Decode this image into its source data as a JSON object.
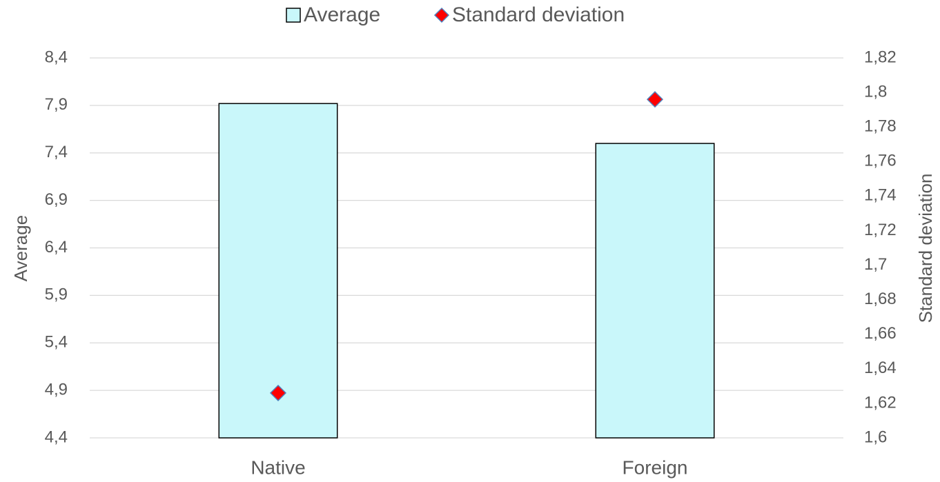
{
  "chart_data": {
    "type": "bar",
    "categories": [
      "Native",
      "Foreign"
    ],
    "series": [
      {
        "name": "Average",
        "type": "bar",
        "color": "#c9f7fa",
        "values": [
          7.92,
          7.5
        ]
      },
      {
        "name": "Standard deviation",
        "type": "scatter",
        "axis": "y2",
        "color": "#ff0000",
        "values": [
          1.626,
          1.796
        ]
      }
    ],
    "ylabel": "Average",
    "y2label": "Standard deviation",
    "ylim": [
      4.4,
      8.4
    ],
    "yticks": [
      {
        "value": 4.4,
        "label": "4,4"
      },
      {
        "value": 4.9,
        "label": "4,9"
      },
      {
        "value": 5.4,
        "label": "5,4"
      },
      {
        "value": 5.9,
        "label": "5,9"
      },
      {
        "value": 6.4,
        "label": "6,4"
      },
      {
        "value": 6.9,
        "label": "6,9"
      },
      {
        "value": 7.4,
        "label": "7,4"
      },
      {
        "value": 7.9,
        "label": "7,9"
      },
      {
        "value": 8.4,
        "label": "8,4"
      }
    ],
    "y2lim": [
      1.6,
      1.82
    ],
    "y2ticks": [
      {
        "value": 1.6,
        "label": "1,6"
      },
      {
        "value": 1.62,
        "label": "1,62"
      },
      {
        "value": 1.64,
        "label": "1,64"
      },
      {
        "value": 1.66,
        "label": "1,66"
      },
      {
        "value": 1.68,
        "label": "1,68"
      },
      {
        "value": 1.7,
        "label": "1,7"
      },
      {
        "value": 1.72,
        "label": "1,72"
      },
      {
        "value": 1.74,
        "label": "1,74"
      },
      {
        "value": 1.76,
        "label": "1,76"
      },
      {
        "value": 1.78,
        "label": "1,78"
      },
      {
        "value": 1.8,
        "label": "1,8"
      },
      {
        "value": 1.82,
        "label": "1,82"
      }
    ],
    "grid": true,
    "legend": "top"
  }
}
